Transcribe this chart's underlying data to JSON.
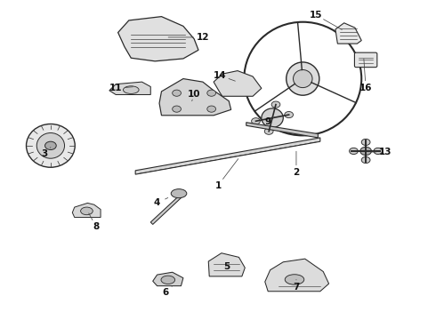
{
  "background_color": "#ffffff",
  "line_color": "#2a2a2a",
  "label_color": "#111111",
  "fig_width": 4.9,
  "fig_height": 3.6,
  "dpi": 100,
  "label_positions": {
    "1": [
      0.5,
      0.42,
      0.55,
      0.51
    ],
    "2": [
      0.68,
      0.46,
      0.68,
      0.535
    ],
    "3": [
      0.1,
      0.52,
      0.115,
      0.54
    ],
    "4": [
      0.36,
      0.365,
      0.39,
      0.385
    ],
    "5": [
      0.52,
      0.165,
      0.52,
      0.17
    ],
    "6": [
      0.38,
      0.085,
      0.395,
      0.105
    ],
    "7": [
      0.68,
      0.1,
      0.68,
      0.125
    ],
    "8": [
      0.22,
      0.29,
      0.2,
      0.34
    ],
    "9": [
      0.615,
      0.62,
      0.63,
      0.635
    ],
    "10": [
      0.445,
      0.705,
      0.44,
      0.685
    ],
    "11": [
      0.265,
      0.725,
      0.31,
      0.73
    ],
    "12": [
      0.465,
      0.885,
      0.38,
      0.885
    ],
    "13": [
      0.885,
      0.525,
      0.845,
      0.525
    ],
    "14": [
      0.505,
      0.765,
      0.545,
      0.745
    ],
    "15": [
      0.725,
      0.955,
      0.79,
      0.905
    ],
    "16": [
      0.84,
      0.725,
      0.835,
      0.825
    ]
  }
}
